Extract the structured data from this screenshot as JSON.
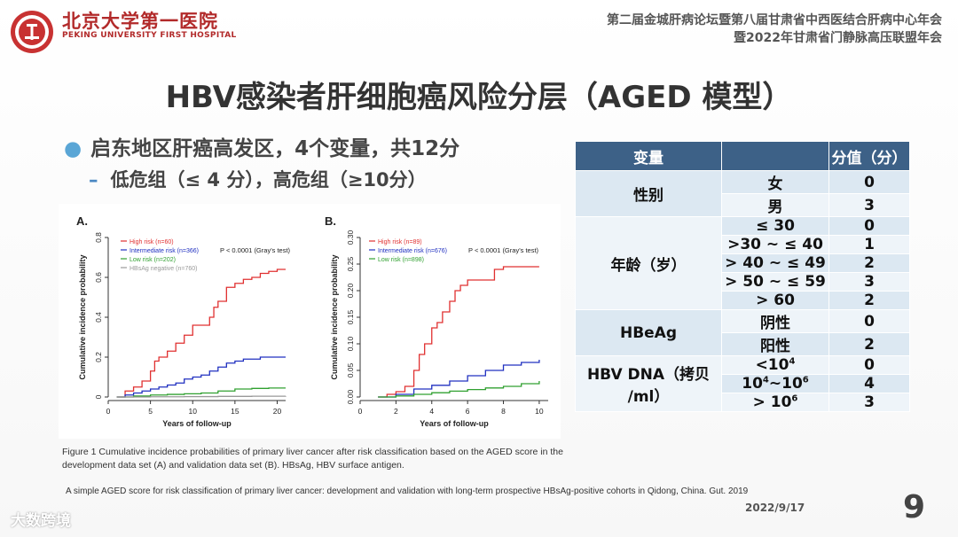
{
  "header": {
    "hospital_cn": "北京大学第一医院",
    "hospital_en": "PEKING UNIVERSITY FIRST HOSPITAL",
    "conference_line1": "第二届金城肝病论坛暨第八届甘肃省中西医结合肝病中心年会",
    "conference_line2": "暨2022年甘肃省门静脉高压联盟年会"
  },
  "title": "HBV感染者肝细胞癌风险分层（AGED 模型）",
  "bullets": {
    "main": "启东地区肝癌高发区，4个变量，共12分",
    "sub": "低危组（≤ 4 分），高危组（≥10分）"
  },
  "table": {
    "headers": [
      "变量",
      "",
      "分值（分）"
    ],
    "rows": [
      {
        "var": "性别",
        "level": "女",
        "score": "0"
      },
      {
        "var": "",
        "level": "男",
        "score": "3"
      },
      {
        "var": "年龄（岁）",
        "level": "≤ 30",
        "score": "0"
      },
      {
        "var": "",
        "level": ">30 ~ ≤ 40",
        "score": "1"
      },
      {
        "var": "",
        "level": "> 40 ~ ≤ 49",
        "score": "2"
      },
      {
        "var": "",
        "level": "> 50 ~ ≤ 59",
        "score": "3"
      },
      {
        "var": "",
        "level": "> 60",
        "score": "2"
      },
      {
        "var": "HBeAg",
        "level": "阴性",
        "score": "0"
      },
      {
        "var": "",
        "level": "阳性",
        "score": "2"
      },
      {
        "var": "HBV DNA（拷贝/ml）",
        "level": "<10 4",
        "score": "0"
      },
      {
        "var": "",
        "level": "10 4~10 6",
        "score": "4"
      },
      {
        "var": "",
        "level": "> 10 6",
        "score": "3"
      }
    ],
    "var_labels": {
      "sex": "性别",
      "age": "年龄（岁）",
      "hbeag": "HBeAg",
      "dna_line1": "HBV DNA（拷贝",
      "dna_line2": "/ml）"
    },
    "dna_levels": {
      "l1_base": "<10",
      "l1_exp": "4",
      "l2_a": "10",
      "l2_a_exp": "4",
      "l2_mid": "~10",
      "l2_b_exp": "6",
      "l3_base": "> 10",
      "l3_exp": "6"
    }
  },
  "figure_caption": "Figure 1 Cumulative incidence probabilities of primary liver cancer after risk classification based on the AGED score in the development data set (A) and validation data set (B). HBsAg, HBV surface antigen.",
  "reference": "A simple AGED score for risk classification of primary liver cancer: development and validation with long-term prospective HBsAg-positive cohorts in Qidong, China. Gut. 2019",
  "date": "2022/9/17",
  "page_number": "9",
  "watermark": "大数跨境",
  "chart_data": [
    {
      "type": "line",
      "panel": "A.",
      "xlabel": "Years of follow-up",
      "ylabel": "Cumulative incidence probability",
      "xlim": [
        0,
        21
      ],
      "ylim": [
        0,
        0.8
      ],
      "xticks": [
        0,
        5,
        10,
        15,
        20
      ],
      "yticks": [
        "0",
        "0.2",
        "0.4",
        "0.6",
        "0.8"
      ],
      "annotation": "P < 0.0001 (Gray's test)",
      "colors": [
        "#e03030",
        "#2030c0",
        "#30a030",
        "#999999"
      ],
      "series": [
        {
          "name": "High risk  (n=60)",
          "x": [
            1,
            2,
            3,
            4,
            5,
            5.5,
            6,
            7,
            8,
            9,
            10,
            11,
            12,
            12.5,
            13,
            14,
            15,
            16,
            17,
            18,
            19,
            20,
            21
          ],
          "y": [
            0,
            0.03,
            0.05,
            0.08,
            0.13,
            0.18,
            0.2,
            0.23,
            0.27,
            0.31,
            0.36,
            0.36,
            0.4,
            0.45,
            0.48,
            0.55,
            0.57,
            0.59,
            0.6,
            0.62,
            0.63,
            0.64,
            0.64
          ]
        },
        {
          "name": "Intermediate risk (n=366)",
          "x": [
            1,
            2,
            3,
            4,
            5,
            6,
            7,
            8,
            9,
            10,
            11,
            12,
            13,
            14,
            15,
            16,
            17,
            18,
            19,
            20,
            21
          ],
          "y": [
            0,
            0.01,
            0.02,
            0.03,
            0.04,
            0.05,
            0.06,
            0.07,
            0.09,
            0.1,
            0.11,
            0.13,
            0.15,
            0.17,
            0.18,
            0.19,
            0.19,
            0.2,
            0.2,
            0.2,
            0.2
          ]
        },
        {
          "name": "Low risk (n=202)",
          "x": [
            1,
            3,
            5,
            7,
            9,
            11,
            13,
            15,
            17,
            19,
            21
          ],
          "y": [
            0,
            0.005,
            0.01,
            0.013,
            0.016,
            0.02,
            0.03,
            0.04,
            0.043,
            0.045,
            0.045
          ]
        },
        {
          "name": "HBsAg negative (n=760)",
          "x": [
            1,
            5,
            9,
            13,
            17,
            21
          ],
          "y": [
            0,
            0.001,
            0.002,
            0.003,
            0.004,
            0.005
          ]
        }
      ]
    },
    {
      "type": "line",
      "panel": "B.",
      "xlabel": "Years of follow-up",
      "ylabel": "Cumulative incidence probability",
      "xlim": [
        0,
        10.5
      ],
      "ylim": [
        0,
        0.3
      ],
      "xticks": [
        0,
        2,
        4,
        6,
        8,
        10
      ],
      "yticks": [
        "0.00",
        "0.05",
        "0.10",
        "0.15",
        "0.20",
        "0.25",
        "0.30"
      ],
      "annotation": "P < 0.0001 (Gray's test)",
      "colors": [
        "#e03030",
        "#2030c0",
        "#30a030"
      ],
      "series": [
        {
          "name": "High risk  (n=89)",
          "x": [
            1,
            1.5,
            2,
            2.5,
            3,
            3.3,
            3.6,
            4,
            4.3,
            4.6,
            5,
            5.3,
            5.6,
            6,
            6.5,
            7,
            7.5,
            8,
            9,
            10
          ],
          "y": [
            0,
            0.005,
            0.01,
            0.02,
            0.05,
            0.08,
            0.1,
            0.13,
            0.14,
            0.16,
            0.18,
            0.2,
            0.21,
            0.22,
            0.22,
            0.22,
            0.24,
            0.245,
            0.245,
            0.245
          ]
        },
        {
          "name": "Intermediate risk (n=676)",
          "x": [
            1,
            2,
            3,
            4,
            5,
            6,
            7,
            8,
            9,
            10
          ],
          "y": [
            0,
            0.005,
            0.015,
            0.022,
            0.03,
            0.04,
            0.05,
            0.06,
            0.065,
            0.07
          ]
        },
        {
          "name": "Low risk (n=898)",
          "x": [
            1,
            2,
            3,
            4,
            5,
            6,
            7,
            8,
            9,
            10
          ],
          "y": [
            0,
            0.002,
            0.005,
            0.008,
            0.011,
            0.014,
            0.017,
            0.02,
            0.025,
            0.03
          ]
        }
      ]
    }
  ]
}
